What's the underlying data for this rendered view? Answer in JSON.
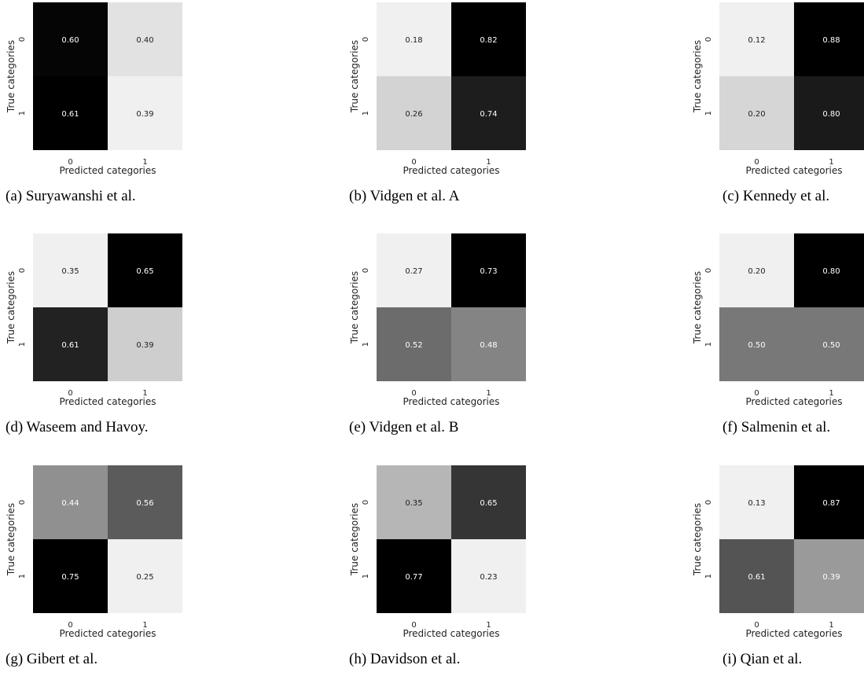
{
  "chart_data": [
    {
      "type": "heatmap",
      "caption": "(a) Suryawanshi et al.",
      "xlabel": "Predicted categories",
      "ylabel": "True categories",
      "x_ticks": [
        "0",
        "1"
      ],
      "y_ticks": [
        "0",
        "1"
      ],
      "values": [
        [
          "0.60",
          "0.40"
        ],
        [
          "0.61",
          "0.39"
        ]
      ],
      "shades": [
        [
          0.02,
          0.94
        ],
        [
          0.0,
          1.0
        ]
      ]
    },
    {
      "type": "heatmap",
      "caption": "(b) Vidgen et al. A",
      "xlabel": "Predicted categories",
      "ylabel": "True categories",
      "x_ticks": [
        "0",
        "1"
      ],
      "y_ticks": [
        "0",
        "1"
      ],
      "values": [
        [
          "0.18",
          "0.82"
        ],
        [
          "0.26",
          "0.74"
        ]
      ],
      "shades": [
        [
          1.0,
          0.0
        ],
        [
          0.88,
          0.12
        ]
      ]
    },
    {
      "type": "heatmap",
      "caption": "(c) Kennedy et al.",
      "xlabel": "Predicted categories",
      "ylabel": "True categories",
      "x_ticks": [
        "0",
        "1"
      ],
      "y_ticks": [
        "0",
        "1"
      ],
      "values": [
        [
          "0.12",
          "0.88"
        ],
        [
          "0.20",
          "0.80"
        ]
      ],
      "shades": [
        [
          1.0,
          0.0
        ],
        [
          0.89,
          0.11
        ]
      ]
    },
    {
      "type": "heatmap",
      "caption": "(d) Waseem and Havoy.",
      "xlabel": "Predicted categories",
      "ylabel": "True categories",
      "x_ticks": [
        "0",
        "1"
      ],
      "y_ticks": [
        "0",
        "1"
      ],
      "values": [
        [
          "0.35",
          "0.65"
        ],
        [
          "0.61",
          "0.39"
        ]
      ],
      "shades": [
        [
          1.0,
          0.0
        ],
        [
          0.14,
          0.86
        ]
      ]
    },
    {
      "type": "heatmap",
      "caption": "(e) Vidgen et al. B",
      "xlabel": "Predicted categories",
      "ylabel": "True categories",
      "x_ticks": [
        "0",
        "1"
      ],
      "y_ticks": [
        "0",
        "1"
      ],
      "values": [
        [
          "0.27",
          "0.73"
        ],
        [
          "0.52",
          "0.48"
        ]
      ],
      "shades": [
        [
          1.0,
          0.0
        ],
        [
          0.45,
          0.55
        ]
      ]
    },
    {
      "type": "heatmap",
      "caption": "(f) Salmenin et al.",
      "xlabel": "Predicted categories",
      "ylabel": "True categories",
      "x_ticks": [
        "0",
        "1"
      ],
      "y_ticks": [
        "0",
        "1"
      ],
      "values": [
        [
          "0.20",
          "0.80"
        ],
        [
          "0.50",
          "0.50"
        ]
      ],
      "shades": [
        [
          1.0,
          0.0
        ],
        [
          0.5,
          0.5
        ]
      ]
    },
    {
      "type": "heatmap",
      "caption": "(g) Gibert et al.",
      "xlabel": "Predicted categories",
      "ylabel": "True categories",
      "x_ticks": [
        "0",
        "1"
      ],
      "y_ticks": [
        "0",
        "1"
      ],
      "values": [
        [
          "0.44",
          "0.56"
        ],
        [
          "0.75",
          "0.25"
        ]
      ],
      "shades": [
        [
          0.6,
          0.38
        ],
        [
          0.0,
          1.0
        ]
      ]
    },
    {
      "type": "heatmap",
      "caption": "(h) Davidson et al.",
      "xlabel": "Predicted categories",
      "ylabel": "True categories",
      "x_ticks": [
        "0",
        "1"
      ],
      "y_ticks": [
        "0",
        "1"
      ],
      "values": [
        [
          "0.35",
          "0.65"
        ],
        [
          "0.77",
          "0.23"
        ]
      ],
      "shades": [
        [
          0.76,
          0.22
        ],
        [
          0.0,
          1.0
        ]
      ]
    },
    {
      "type": "heatmap",
      "caption": "(i) Qian et al.",
      "xlabel": "Predicted categories",
      "ylabel": "True categories",
      "x_ticks": [
        "0",
        "1"
      ],
      "y_ticks": [
        "0",
        "1"
      ],
      "values": [
        [
          "0.13",
          "0.87"
        ],
        [
          "0.61",
          "0.39"
        ]
      ],
      "shades": [
        [
          1.0,
          0.0
        ],
        [
          0.35,
          0.64
        ]
      ]
    }
  ]
}
